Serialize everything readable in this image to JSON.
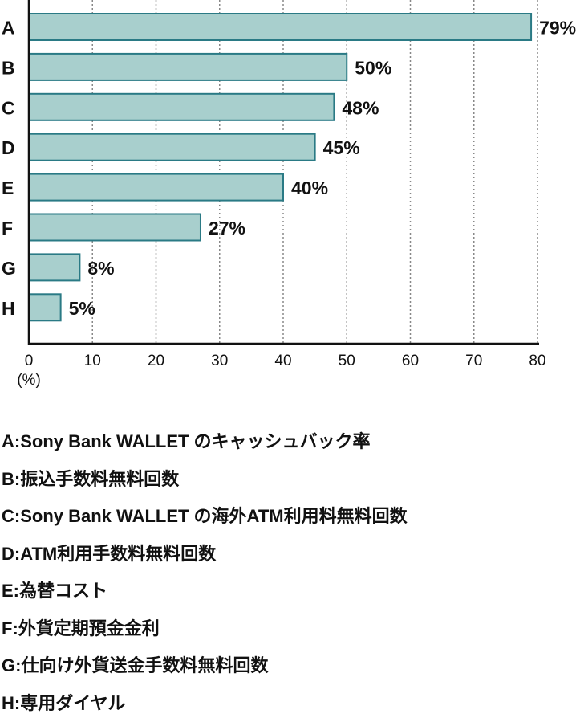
{
  "chart_data": {
    "type": "bar",
    "orientation": "horizontal",
    "categories": [
      "A",
      "B",
      "C",
      "D",
      "E",
      "F",
      "G",
      "H"
    ],
    "values": [
      79,
      50,
      48,
      45,
      40,
      27,
      8,
      5
    ],
    "data_labels": [
      "79%",
      "50%",
      "48%",
      "45%",
      "40%",
      "27%",
      "8%",
      "5%"
    ],
    "xlim": [
      0,
      80
    ],
    "xticks": [
      "0",
      "10",
      "20",
      "30",
      "40",
      "50",
      "60",
      "70",
      "80"
    ],
    "xlabel": "(%)",
    "grid": "vertical dotted",
    "colors": {
      "fill": "#a8cfcd",
      "stroke": "#2a7a85"
    }
  },
  "legend": [
    "A:Sony Bank WALLET のキャッシュバック率",
    "B:振込手数料無料回数",
    "C:Sony Bank WALLET の海外ATM利用料無料回数",
    "D:ATM利用手数料無料回数",
    "E:為替コスト",
    "F:外貨定期預金金利",
    "G:仕向け外貨送金手数料無料回数",
    "H:専用ダイヤル"
  ]
}
